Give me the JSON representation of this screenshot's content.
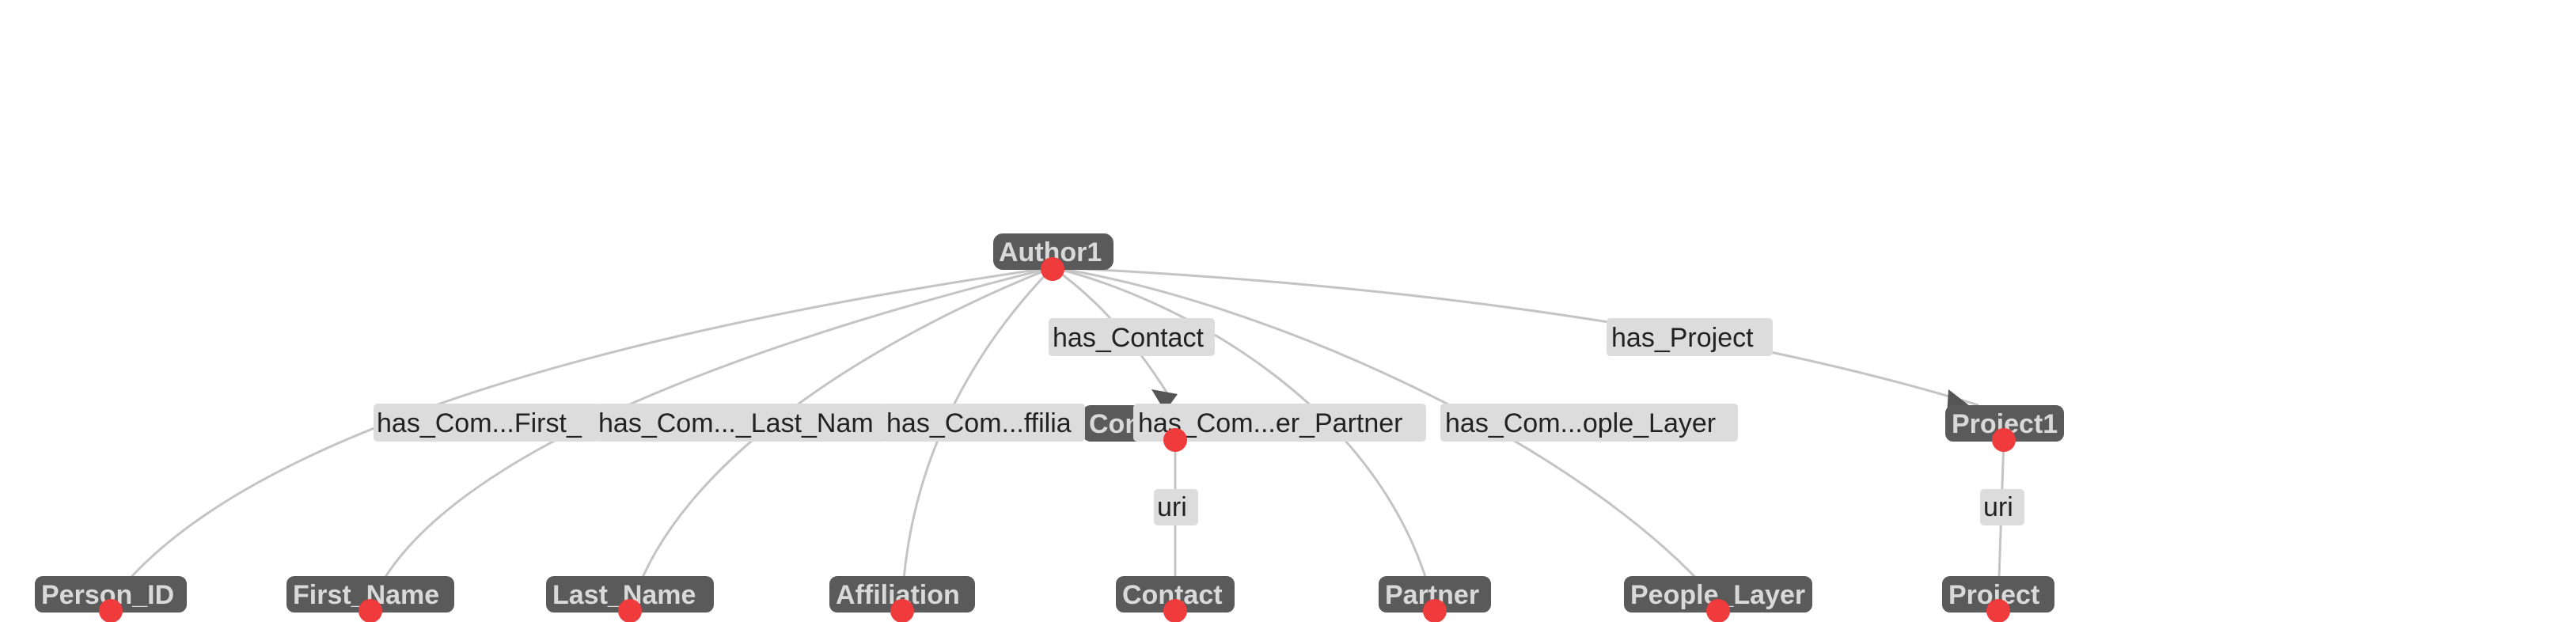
{
  "colors": {
    "node_fill": "#5a5a5a",
    "node_text": "#d9d9d9",
    "port_dot": "#ef3b3b",
    "edge_line": "#c4c4c4",
    "edge_label_bg": "#dcdcdc",
    "edge_label_text": "#222222",
    "arrowhead": "#555555"
  },
  "nodes": {
    "author1": "Author1",
    "contact_mid": "Contact1",
    "project1": "Project1",
    "person_id": "Person_ID",
    "first_name": "First_Name",
    "last_name": "Last_Name",
    "affiliation": "Affiliation",
    "contact": "Contact",
    "partner": "Partner",
    "people_layer": "People_Layer",
    "project": "Project"
  },
  "edges": {
    "has_contact": "has_Contact",
    "has_project": "has_Project",
    "has_com_first": "has_Com...First_",
    "has_com_last": "has_Com..._Last_Nam",
    "has_com_affil": "has_Com...ffilia",
    "has_com_partner": "has_Com...er_Partner",
    "has_com_people": "has_Com...ople_Layer",
    "uri_contact": "uri",
    "uri_project": "uri"
  }
}
